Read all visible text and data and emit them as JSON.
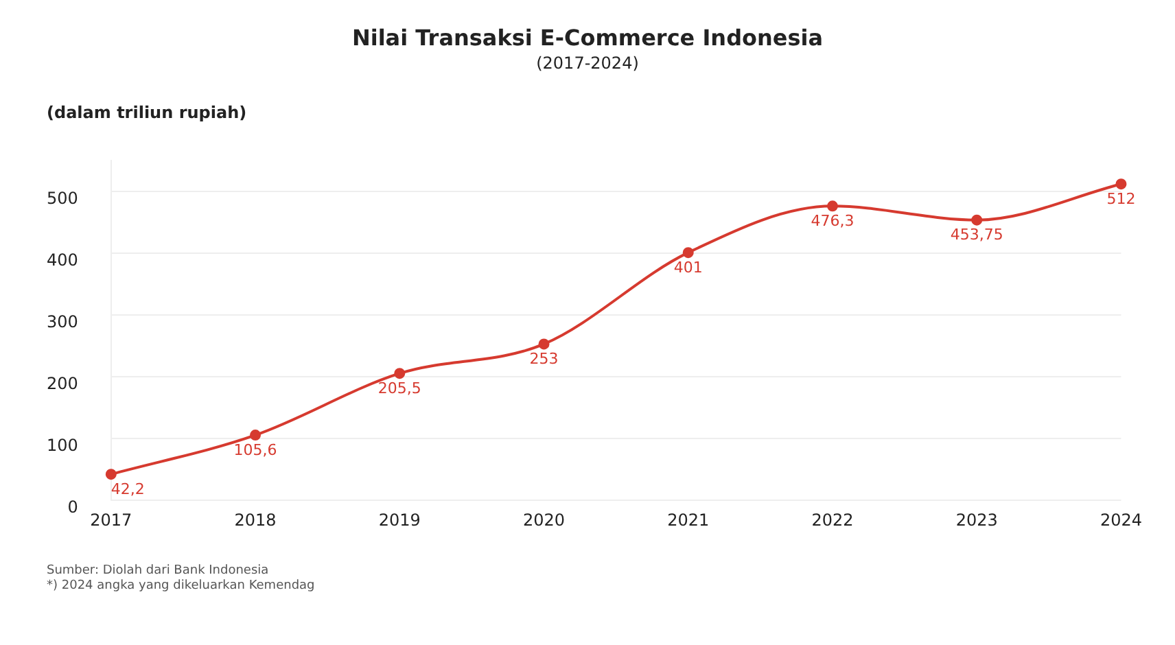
{
  "chart_data": {
    "type": "line",
    "title": "Nilai Transaksi E-Commerce Indonesia",
    "subtitle": "(2017-2024)",
    "ylabel": "(dalam triliun rupiah)",
    "categories": [
      "2017",
      "2018",
      "2019",
      "2020",
      "2021",
      "2022",
      "2023",
      "2024"
    ],
    "series": [
      {
        "color": "#d63a2f",
        "values": [
          42.2,
          105.6,
          205.5,
          253,
          401,
          476.3,
          453.75,
          512
        ],
        "value_labels": [
          "42,2",
          "105,6",
          "205,5",
          "253",
          "401",
          "476,3",
          "453,75",
          "512"
        ]
      }
    ],
    "ylim": [
      0,
      550
    ],
    "yticks": [
      0,
      100,
      200,
      300,
      400,
      500
    ],
    "grid": "y",
    "legend": false,
    "marker": "circle",
    "line_style": "solid",
    "annotations": [
      "Sumber: Diolah dari Bank Indonesia",
      "*) 2024 angka yang dikeluarkan Kemendag"
    ]
  }
}
